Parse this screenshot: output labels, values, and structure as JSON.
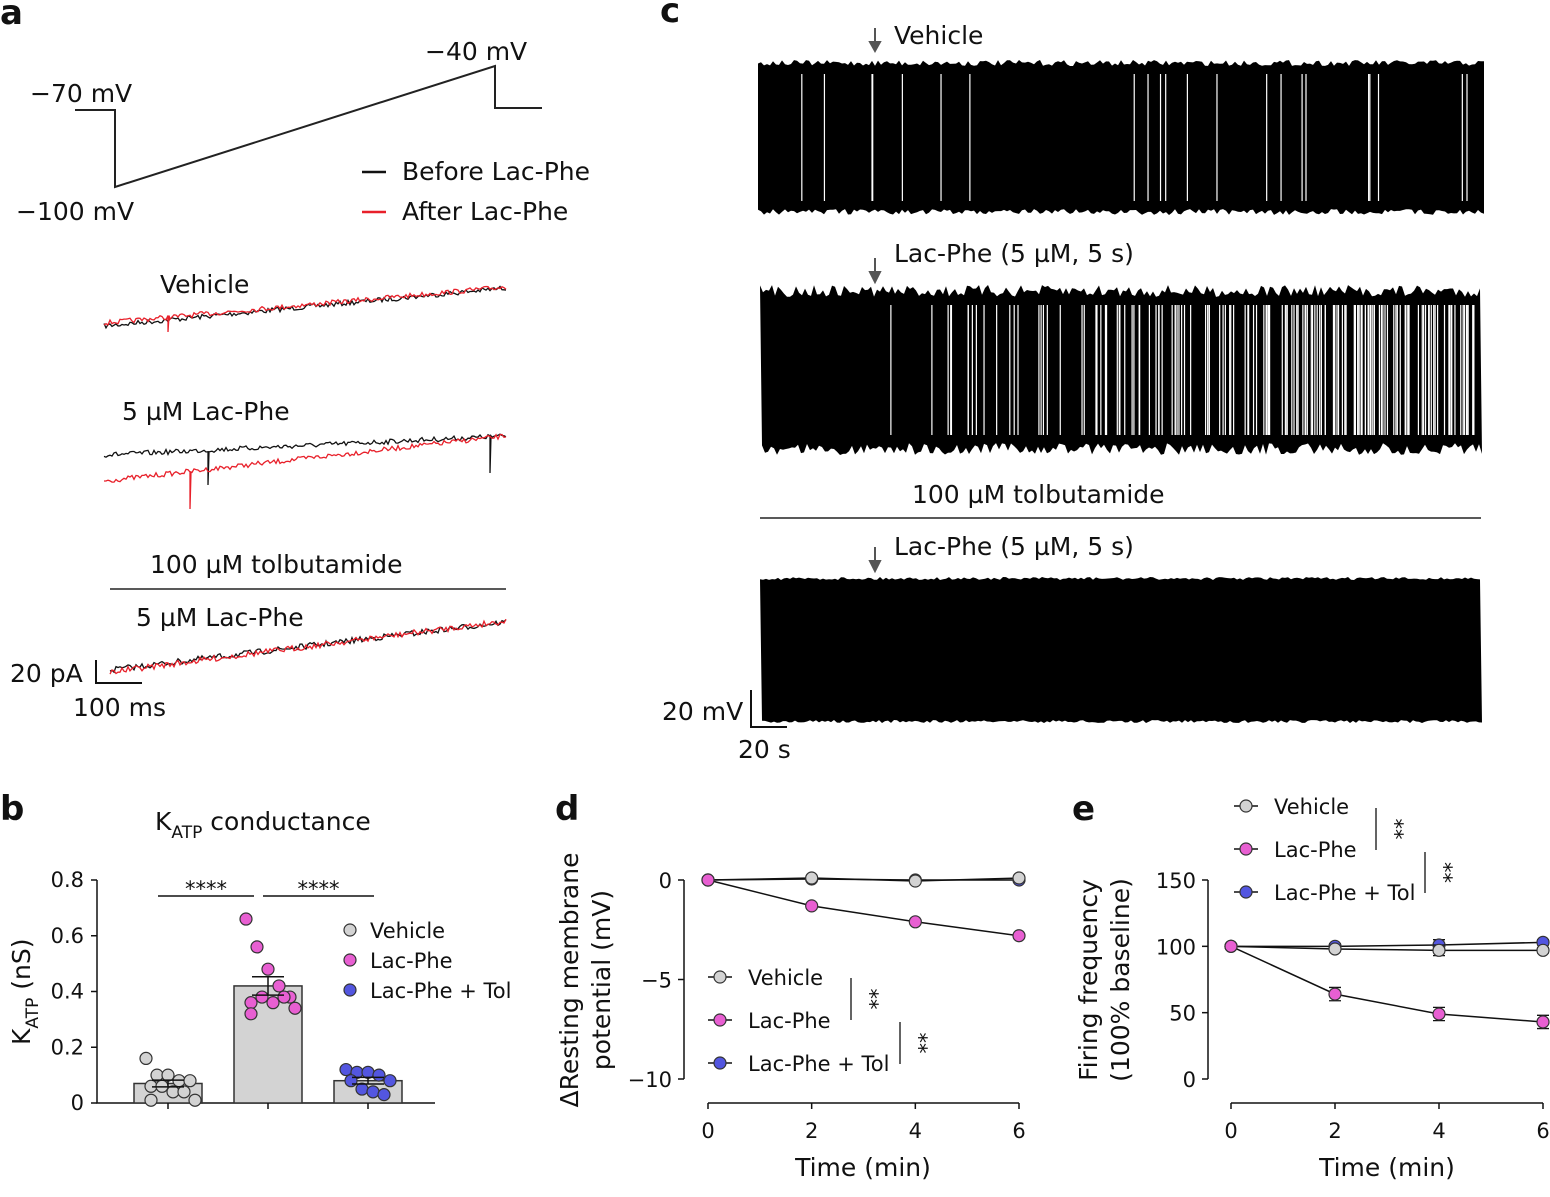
{
  "panels": {
    "a": "a",
    "b": "b",
    "c": "c",
    "d": "d",
    "e": "e"
  },
  "panel_a": {
    "protocol": {
      "v_hold": "−70 mV",
      "v_low": "−100 mV",
      "v_high": "−40 mV"
    },
    "legend": {
      "before": "Before Lac-Phe",
      "after": "After Lac-Phe"
    },
    "trace_labels": {
      "vehicle": "Vehicle",
      "lacphe": "5 µM Lac-Phe",
      "tolb": "100 µM tolbutamide",
      "lacphe_tol": "5 µM Lac-Phe"
    },
    "scale": {
      "current": "20 pA",
      "time": "100 ms"
    },
    "colors": {
      "before": "#111111",
      "after": "#e8202a"
    }
  },
  "panel_c": {
    "labels": {
      "vehicle": "Vehicle",
      "lacphe1": "Lac-Phe (5 µM, 5 s)",
      "tolb": "100 µM tolbutamide",
      "lacphe2": "Lac-Phe (5 µM, 5 s)"
    },
    "scale": {
      "voltage": "20 mV",
      "time": "20 s"
    }
  },
  "colors": {
    "vehicle": "#d3d3d3",
    "lacphe": "#e85fd2",
    "tol": "#5356e0"
  },
  "chart_data": [
    {
      "id": "b",
      "type": "bar",
      "title": "KATP conductance",
      "title_main": "K",
      "title_sub": "ATP",
      "title_rest": " conductance",
      "ylabel_main": "K",
      "ylabel_sub": "ATP",
      "ylabel_rest": " (nS)",
      "ylim": [
        0,
        0.8
      ],
      "yticks": [
        "0",
        "0.2",
        "0.4",
        "0.6",
        "0.8"
      ],
      "categories": [
        "Vehicle",
        "Lac-Phe",
        "Lac-Phe + Tol"
      ],
      "values": [
        0.07,
        0.42,
        0.08
      ],
      "sem": [
        0.012,
        0.033,
        0.012
      ],
      "points": [
        [
          0.16,
          0.1,
          0.1,
          0.08,
          0.08,
          0.06,
          0.06,
          0.04,
          0.04,
          0.01,
          0.01
        ],
        [
          0.66,
          0.56,
          0.48,
          0.42,
          0.38,
          0.36,
          0.38,
          0.36,
          0.38,
          0.34,
          0.32
        ],
        [
          0.12,
          0.11,
          0.11,
          0.1,
          0.08,
          0.08,
          0.05,
          0.04,
          0.03
        ]
      ],
      "significance": [
        {
          "between": [
            0,
            1
          ],
          "label": "****"
        },
        {
          "between": [
            1,
            2
          ],
          "label": "****"
        }
      ],
      "legend": [
        "Vehicle",
        "Lac-Phe",
        "Lac-Phe + Tol"
      ],
      "legend_position": "right"
    },
    {
      "id": "d",
      "type": "line",
      "ylabel": "ΔResting membrane potential (mV)",
      "ylabel_l1": "ΔResting membrane",
      "ylabel_l2": "potential (mV)",
      "xlabel": "Time (min)",
      "x": [
        0,
        2,
        4,
        6
      ],
      "xticks": [
        "0",
        "2",
        "4",
        "6"
      ],
      "ylim": [
        -10,
        0
      ],
      "yticks": [
        "0",
        "−5",
        "−10"
      ],
      "series": [
        {
          "name": "Vehicle",
          "values": [
            0,
            0.1,
            -0.05,
            0.1
          ]
        },
        {
          "name": "Lac-Phe",
          "values": [
            0,
            -1.3,
            -2.1,
            -2.8
          ]
        },
        {
          "name": "Lac-Phe + Tol",
          "values": [
            0,
            0.05,
            0,
            0
          ]
        }
      ],
      "significance": [
        "**",
        "**"
      ],
      "legend_position": "bottom-left"
    },
    {
      "id": "e",
      "type": "line",
      "ylabel": "Firing frequency (100% baseline)",
      "ylabel_l1": "Firing frequency",
      "ylabel_l2": "(100% baseline)",
      "xlabel": "Time (min)",
      "x": [
        0,
        2,
        4,
        6
      ],
      "xticks": [
        "0",
        "2",
        "4",
        "6"
      ],
      "ylim": [
        0,
        150
      ],
      "yticks": [
        "0",
        "50",
        "100",
        "150"
      ],
      "series": [
        {
          "name": "Vehicle",
          "values": [
            100,
            98,
            97,
            97
          ],
          "sem": [
            0,
            2,
            4,
            2
          ]
        },
        {
          "name": "Lac-Phe",
          "values": [
            100,
            64,
            49,
            43
          ],
          "sem": [
            0,
            5,
            5,
            5
          ]
        },
        {
          "name": "Lac-Phe + Tol",
          "values": [
            100,
            100,
            101,
            103
          ],
          "sem": [
            0,
            2,
            4,
            2
          ]
        }
      ],
      "significance": [
        "**",
        "**"
      ],
      "legend_position": "top"
    }
  ]
}
